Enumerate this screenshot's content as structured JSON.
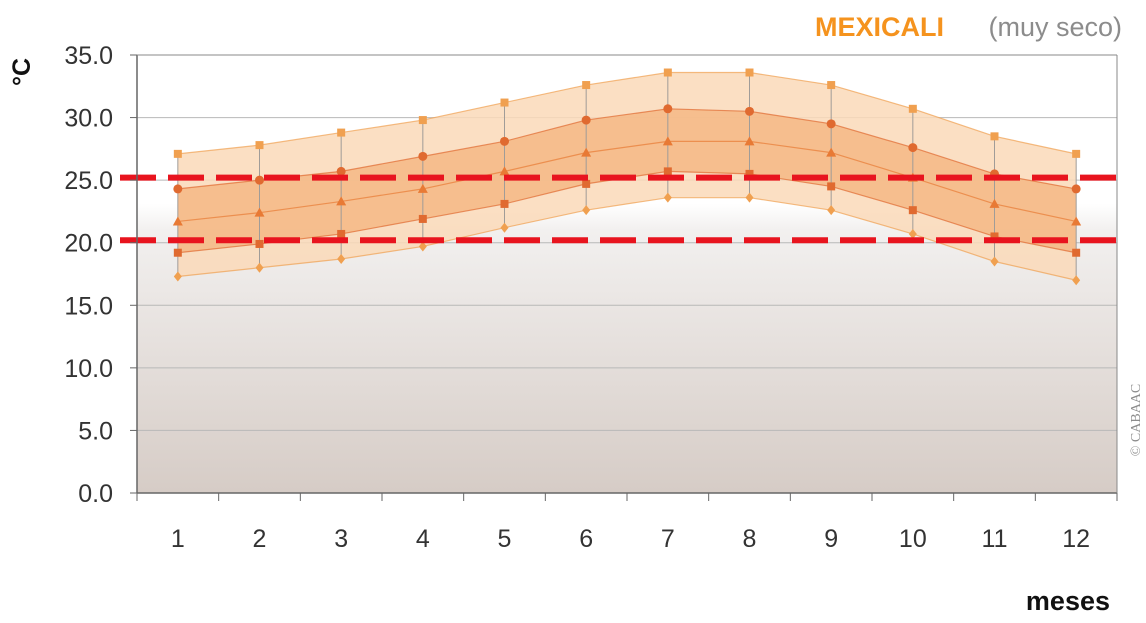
{
  "chart_data": {
    "type": "line",
    "title": "MEXICALI",
    "subtitle": "(muy seco)",
    "xlabel": "meses",
    "ylabel": "°C",
    "categories": [
      "1",
      "2",
      "3",
      "4",
      "5",
      "6",
      "7",
      "8",
      "9",
      "10",
      "11",
      "12"
    ],
    "ylim": [
      0,
      35
    ],
    "yticks": [
      "0.0",
      "5.0",
      "10.0",
      "15.0",
      "20.0",
      "25.0",
      "30.0",
      "35.0"
    ],
    "grid": true,
    "series": [
      {
        "values": [
          27.1,
          27.8,
          28.8,
          29.8,
          31.2,
          32.6,
          33.6,
          33.6,
          32.6,
          30.7,
          28.5,
          27.1
        ],
        "marker": "square",
        "color": "#f0a050"
      },
      {
        "values": [
          24.3,
          25.0,
          25.7,
          26.9,
          28.1,
          29.8,
          30.7,
          30.5,
          29.5,
          27.6,
          25.5,
          24.3
        ],
        "marker": "circle",
        "color": "#e06a30"
      },
      {
        "values": [
          21.7,
          22.4,
          23.3,
          24.3,
          25.7,
          27.2,
          28.1,
          28.1,
          27.2,
          25.2,
          23.1,
          21.7
        ],
        "marker": "triangle",
        "color": "#e87a35"
      },
      {
        "values": [
          19.2,
          19.9,
          20.7,
          21.9,
          23.1,
          24.7,
          25.7,
          25.5,
          24.5,
          22.6,
          20.5,
          19.2
        ],
        "marker": "square",
        "color": "#e06a30"
      },
      {
        "values": [
          17.3,
          18.0,
          18.7,
          19.7,
          21.2,
          22.6,
          23.6,
          23.6,
          22.6,
          20.7,
          18.5,
          17.0
        ],
        "marker": "diamond",
        "color": "#f0a050"
      }
    ],
    "reference_lines": [
      {
        "value": 25.2,
        "color": "#e8141e",
        "style": "dashed"
      },
      {
        "value": 20.2,
        "color": "#e8141e",
        "style": "dashed"
      }
    ],
    "band_color_outer": "#fad9b8",
    "band_color_inner": "#f5b885",
    "legend": "none",
    "copyright": "© CABAAC"
  }
}
